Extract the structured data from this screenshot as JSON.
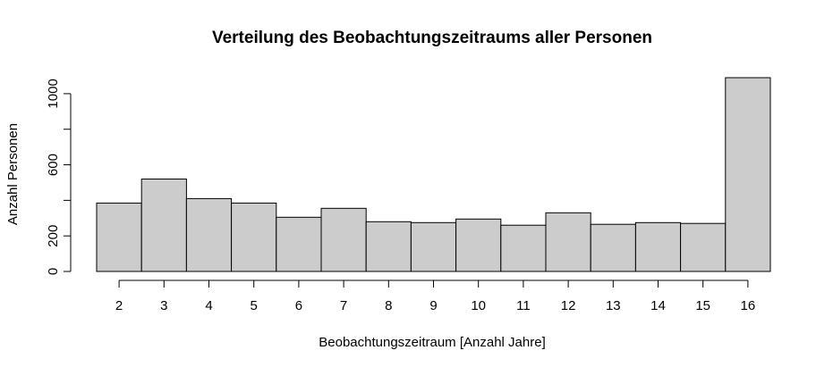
{
  "chart_data": {
    "type": "bar",
    "title": "Verteilung des Beobachtungszeitraums aller Personen",
    "xlabel": "Beobachtungszeitraum [Anzahl Jahre]",
    "ylabel": "Anzahl Personen",
    "categories": [
      "2",
      "3",
      "4",
      "5",
      "6",
      "7",
      "8",
      "9",
      "10",
      "11",
      "12",
      "13",
      "14",
      "15",
      "16"
    ],
    "values": [
      385,
      520,
      410,
      385,
      305,
      355,
      280,
      275,
      295,
      260,
      330,
      265,
      275,
      270,
      1090
    ],
    "yticks": [
      0,
      200,
      600,
      1000
    ],
    "ylim": [
      0,
      1090
    ],
    "bar_fill": "#cccccc",
    "bar_stroke": "#000000",
    "grid": false
  }
}
